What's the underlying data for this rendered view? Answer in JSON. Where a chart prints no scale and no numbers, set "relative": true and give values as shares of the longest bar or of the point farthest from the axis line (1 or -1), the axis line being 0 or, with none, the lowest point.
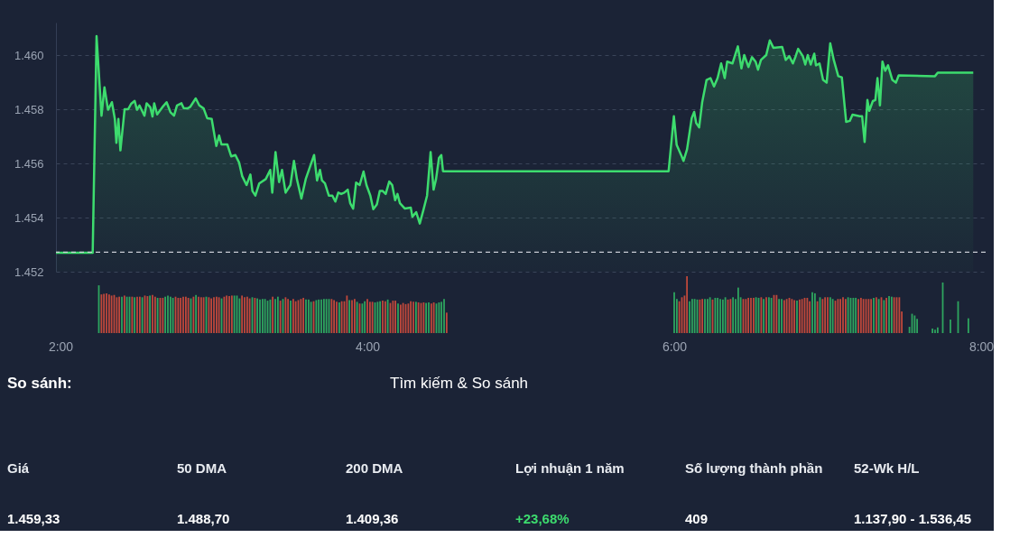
{
  "chart_data": [
    {
      "type": "area",
      "xlim": [
        2,
        8
      ],
      "ylim": [
        1452,
        1461.2
      ],
      "yticks": [
        {
          "value": 1452,
          "label": "1.452"
        },
        {
          "value": 1454,
          "label": "1.454"
        },
        {
          "value": 1456,
          "label": "1.456"
        },
        {
          "value": 1458,
          "label": "1.458"
        },
        {
          "value": 1460,
          "label": "1.460"
        }
      ],
      "grid": "y",
      "tick_labels": "y",
      "ref_lines": [
        {
          "axis": "y",
          "value": 1452.72,
          "color": "#c8ccd4",
          "line_style": "dashed"
        }
      ],
      "series": [
        {
          "type": "area",
          "color": "#3ddc6e",
          "x": [
            2.0,
            2.237,
            2.262,
            2.294,
            2.313,
            2.336,
            2.361,
            2.38,
            2.39,
            2.403,
            2.416,
            2.443,
            2.466,
            2.485,
            2.508,
            2.523,
            2.539,
            2.571,
            2.585,
            2.609,
            2.623,
            2.634,
            2.653,
            2.686,
            2.714,
            2.739,
            2.762,
            2.781,
            2.81,
            2.825,
            2.848,
            2.867,
            2.902,
            2.925,
            2.953,
            2.976,
            3.005,
            3.035,
            3.053,
            3.068,
            3.106,
            3.131,
            3.158,
            3.182,
            3.202,
            3.23,
            3.255,
            3.268,
            3.287,
            3.312,
            3.354,
            3.383,
            3.396,
            3.417,
            3.44,
            3.459,
            3.482,
            3.513,
            3.536,
            3.555,
            3.584,
            3.612,
            3.666,
            3.685,
            3.704,
            3.717,
            3.736,
            3.761,
            3.784,
            3.803,
            3.822,
            3.841,
            3.861,
            3.883,
            3.899,
            3.918,
            3.937,
            3.96,
            3.985,
            4.004,
            4.029,
            4.048,
            4.071,
            4.09,
            4.109,
            4.128,
            4.151,
            4.17,
            4.189,
            4.204,
            4.22,
            4.252,
            4.29,
            4.3,
            4.325,
            4.348,
            4.373,
            4.395,
            4.418,
            4.437,
            4.453,
            4.472,
            4.487,
            4.498,
            5.954,
            5.988,
            6.006,
            6.034,
            6.05,
            6.073,
            6.103,
            6.119,
            6.132,
            6.151,
            6.171,
            6.199,
            6.224,
            6.247,
            6.27,
            6.293,
            6.316,
            6.332,
            6.366,
            6.401,
            6.424,
            6.442,
            6.469,
            6.492,
            6.515,
            6.531,
            6.55,
            6.584,
            6.607,
            6.63,
            6.687,
            6.71,
            6.733,
            6.756,
            6.774,
            6.79,
            6.82,
            6.836,
            6.852,
            6.871,
            6.894,
            6.905,
            6.928,
            6.951,
            6.974,
            6.997,
            7.02,
            7.049,
            7.072,
            7.1,
            7.123,
            7.141,
            7.187,
            7.203,
            7.219,
            7.237,
            7.249,
            7.272,
            7.288,
            7.302,
            7.318,
            7.334,
            7.352,
            7.37,
            7.398,
            7.421,
            7.439,
            7.673,
            7.691,
            7.92
          ],
          "values": [
            1452.7,
            1452.7,
            1460.7,
            1457.76,
            1458.81,
            1457.98,
            1458.26,
            1457.64,
            1456.76,
            1457.64,
            1456.48,
            1458.0,
            1458.0,
            1458.2,
            1458.31,
            1457.98,
            1458.14,
            1457.76,
            1458.22,
            1458.07,
            1457.73,
            1458.22,
            1457.81,
            1458.07,
            1458.26,
            1457.89,
            1457.76,
            1458.14,
            1458.22,
            1458.03,
            1458.03,
            1458.09,
            1458.4,
            1458.14,
            1458.03,
            1457.67,
            1457.64,
            1456.64,
            1457.03,
            1456.7,
            1456.7,
            1456.26,
            1456.31,
            1456.03,
            1455.53,
            1455.2,
            1455.59,
            1454.98,
            1454.81,
            1455.26,
            1455.42,
            1455.76,
            1454.92,
            1456.42,
            1455.31,
            1455.76,
            1454.92,
            1455.2,
            1456.09,
            1455.42,
            1454.7,
            1455.42,
            1456.31,
            1455.37,
            1455.76,
            1455.37,
            1455.26,
            1454.81,
            1454.81,
            1454.59,
            1454.92,
            1454.87,
            1454.92,
            1455.03,
            1454.53,
            1454.33,
            1455.29,
            1455.2,
            1455.7,
            1455.2,
            1454.81,
            1454.31,
            1454.48,
            1454.98,
            1454.98,
            1454.87,
            1455.33,
            1455.2,
            1454.64,
            1454.87,
            1454.53,
            1454.33,
            1454.37,
            1454.03,
            1454.2,
            1453.78,
            1454.31,
            1454.81,
            1456.42,
            1455.03,
            1455.42,
            1456.2,
            1456.31,
            1455.71,
            1455.71,
            1457.74,
            1456.68,
            1456.32,
            1456.09,
            1456.52,
            1457.67,
            1457.9,
            1457.49,
            1457.33,
            1458.27,
            1459.08,
            1459.15,
            1458.84,
            1459.15,
            1459.69,
            1459.15,
            1459.76,
            1459.69,
            1460.32,
            1459.51,
            1460.0,
            1459.56,
            1459.92,
            1459.76,
            1459.46,
            1459.82,
            1460.0,
            1460.54,
            1460.27,
            1460.3,
            1459.82,
            1459.96,
            1459.69,
            1459.96,
            1460.23,
            1459.96,
            1459.65,
            1460.0,
            1459.65,
            1460.05,
            1459.62,
            1459.69,
            1459.08,
            1458.98,
            1460.43,
            1459.82,
            1459.22,
            1459.18,
            1457.53,
            1457.57,
            1457.8,
            1457.74,
            1457.74,
            1456.79,
            1458.34,
            1457.94,
            1458.3,
            1458.34,
            1459.15,
            1458.14,
            1459.76,
            1459.42,
            1459.62,
            1459.08,
            1458.98,
            1459.25,
            1459.22,
            1459.35,
            1459.35
          ]
        }
      ]
    },
    {
      "type": "bar",
      "relative": true,
      "xlim": [
        2,
        8
      ],
      "xticks": [
        {
          "value": 2,
          "label": "2:00"
        },
        {
          "value": 4,
          "label": "4:00"
        },
        {
          "value": 6,
          "label": "6:00"
        },
        {
          "value": 8,
          "label": "8:00"
        }
      ],
      "tick_labels": "x",
      "x": [
        2.25,
        2.267,
        2.283,
        2.3,
        2.317,
        2.333,
        2.35,
        2.367,
        2.383,
        2.4,
        2.417,
        2.433,
        2.45,
        2.467,
        2.483,
        2.5,
        2.517,
        2.533,
        2.55,
        2.567,
        2.583,
        2.6,
        2.617,
        2.633,
        2.65,
        2.667,
        2.683,
        2.7,
        2.717,
        2.733,
        2.75,
        2.767,
        2.783,
        2.8,
        2.817,
        2.833,
        2.85,
        2.867,
        2.883,
        2.9,
        2.917,
        2.933,
        2.95,
        2.967,
        2.983,
        3.0,
        3.017,
        3.033,
        3.05,
        3.067,
        3.083,
        3.1,
        3.117,
        3.133,
        3.15,
        3.167,
        3.183,
        3.2,
        3.217,
        3.233,
        3.25,
        3.267,
        3.283,
        3.3,
        3.317,
        3.333,
        3.35,
        3.367,
        3.383,
        3.4,
        3.417,
        3.433,
        3.45,
        3.467,
        3.483,
        3.5,
        3.517,
        3.533,
        3.55,
        3.567,
        3.583,
        3.6,
        3.617,
        3.633,
        3.65,
        3.667,
        3.683,
        3.7,
        3.717,
        3.733,
        3.75,
        3.767,
        3.783,
        3.8,
        3.817,
        3.833,
        3.85,
        3.867,
        3.883,
        3.9,
        3.917,
        3.933,
        3.95,
        3.967,
        3.983,
        4.0,
        4.017,
        4.033,
        4.05,
        4.067,
        4.083,
        4.1,
        4.117,
        4.133,
        4.15,
        4.167,
        4.183,
        4.2,
        4.217,
        4.233,
        4.25,
        4.267,
        4.283,
        4.3,
        4.317,
        4.333,
        4.35,
        4.367,
        4.383,
        4.4,
        4.417,
        4.433,
        4.45,
        4.467,
        4.483,
        4.5,
        4.517,
        6.0,
        6.017,
        6.033,
        6.05,
        6.067,
        6.083,
        6.1,
        6.117,
        6.133,
        6.15,
        6.167,
        6.183,
        6.2,
        6.217,
        6.233,
        6.25,
        6.267,
        6.283,
        6.3,
        6.317,
        6.333,
        6.35,
        6.367,
        6.383,
        6.4,
        6.417,
        6.433,
        6.45,
        6.467,
        6.483,
        6.5,
        6.517,
        6.533,
        6.55,
        6.567,
        6.583,
        6.6,
        6.617,
        6.633,
        6.65,
        6.667,
        6.683,
        6.7,
        6.717,
        6.733,
        6.75,
        6.767,
        6.783,
        6.8,
        6.817,
        6.833,
        6.85,
        6.867,
        6.883,
        6.9,
        6.917,
        6.933,
        6.95,
        6.967,
        6.983,
        7.0,
        7.017,
        7.033,
        7.05,
        7.067,
        7.083,
        7.1,
        7.117,
        7.133,
        7.15,
        7.167,
        7.183,
        7.2,
        7.217,
        7.233,
        7.25,
        7.267,
        7.283,
        7.3,
        7.317,
        7.333,
        7.35,
        7.367,
        7.383,
        7.4,
        7.417,
        7.433,
        7.45,
        7.467,
        7.483,
        7.533,
        7.55,
        7.567,
        7.583,
        7.683,
        7.7,
        7.717,
        7.75,
        7.8,
        7.85,
        7.917
      ],
      "values": [
        0.84,
        0.68,
        0.69,
        0.7,
        0.68,
        0.66,
        0.67,
        0.63,
        0.64,
        0.64,
        0.66,
        0.64,
        0.64,
        0.64,
        0.63,
        0.64,
        0.64,
        0.63,
        0.66,
        0.65,
        0.66,
        0.67,
        0.64,
        0.62,
        0.62,
        0.62,
        0.64,
        0.66,
        0.64,
        0.62,
        0.64,
        0.62,
        0.62,
        0.64,
        0.64,
        0.62,
        0.61,
        0.64,
        0.67,
        0.64,
        0.63,
        0.63,
        0.64,
        0.63,
        0.61,
        0.63,
        0.64,
        0.63,
        0.61,
        0.64,
        0.66,
        0.65,
        0.66,
        0.66,
        0.66,
        0.61,
        0.66,
        0.63,
        0.64,
        0.61,
        0.63,
        0.62,
        0.61,
        0.59,
        0.6,
        0.6,
        0.57,
        0.59,
        0.64,
        0.6,
        0.64,
        0.57,
        0.6,
        0.63,
        0.6,
        0.57,
        0.6,
        0.56,
        0.58,
        0.6,
        0.62,
        0.59,
        0.59,
        0.55,
        0.56,
        0.58,
        0.59,
        0.59,
        0.6,
        0.6,
        0.6,
        0.6,
        0.58,
        0.55,
        0.54,
        0.56,
        0.56,
        0.66,
        0.58,
        0.58,
        0.6,
        0.55,
        0.52,
        0.52,
        0.56,
        0.6,
        0.55,
        0.55,
        0.54,
        0.55,
        0.56,
        0.57,
        0.56,
        0.59,
        0.53,
        0.57,
        0.57,
        0.52,
        0.5,
        0.53,
        0.51,
        0.52,
        0.56,
        0.55,
        0.55,
        0.54,
        0.53,
        0.54,
        0.53,
        0.54,
        0.52,
        0.54,
        0.52,
        0.54,
        0.55,
        0.6,
        0.36,
        0.72,
        0.6,
        0.56,
        0.63,
        0.66,
        1.0,
        0.56,
        0.6,
        0.6,
        0.59,
        0.59,
        0.6,
        0.6,
        0.6,
        0.63,
        0.59,
        0.62,
        0.62,
        0.6,
        0.59,
        0.63,
        0.59,
        0.6,
        0.63,
        0.6,
        0.8,
        0.63,
        0.6,
        0.6,
        0.62,
        0.62,
        0.62,
        0.63,
        0.62,
        0.63,
        0.6,
        0.63,
        0.63,
        0.62,
        0.67,
        0.67,
        0.6,
        0.6,
        0.58,
        0.6,
        0.62,
        0.6,
        0.58,
        0.57,
        0.59,
        0.6,
        0.62,
        0.62,
        0.56,
        0.72,
        0.7,
        0.56,
        0.63,
        0.6,
        0.63,
        0.63,
        0.63,
        0.6,
        0.57,
        0.6,
        0.6,
        0.63,
        0.6,
        0.63,
        0.62,
        0.62,
        0.62,
        0.6,
        0.62,
        0.6,
        0.6,
        0.6,
        0.6,
        0.62,
        0.63,
        0.6,
        0.63,
        0.58,
        0.62,
        0.65,
        0.64,
        0.63,
        0.63,
        0.63,
        0.38,
        0.11,
        0.34,
        0.31,
        0.25,
        0.08,
        0.06,
        0.1,
        0.89,
        0.24,
        0.56,
        0.26
      ],
      "colors": [
        "#2ea55f",
        "#c0483b",
        "#c0483b",
        "#c0483b",
        "#c0483b",
        "#c0483b",
        "#c0483b",
        "#c0483b",
        "#c0483b",
        "#2ea55f",
        "#c0483b",
        "#2ea55f",
        "#2ea55f",
        "#c0483b",
        "#2ea55f",
        "#c0483b",
        "#c0483b",
        "#2ea55f",
        "#c0483b",
        "#c0483b",
        "#2ea55f",
        "#c0483b",
        "#c0483b",
        "#2ea55f",
        "#c0483b",
        "#c0483b",
        "#2ea55f",
        "#2ea55f",
        "#2ea55f",
        "#2ea55f",
        "#c0483b",
        "#c0483b",
        "#c0483b",
        "#c0483b",
        "#c0483b",
        "#c0483b",
        "#2ea55f",
        "#c0483b",
        "#2ea55f",
        "#c0483b",
        "#c0483b",
        "#c0483b",
        "#2ea55f",
        "#c0483b",
        "#c0483b",
        "#c0483b",
        "#c0483b",
        "#c0483b",
        "#2ea55f",
        "#c0483b",
        "#c0483b",
        "#c0483b",
        "#c0483b",
        "#2ea55f",
        "#2ea55f",
        "#2ea55f",
        "#c0483b",
        "#c0483b",
        "#c0483b",
        "#c0483b",
        "#2ea55f",
        "#c0483b",
        "#2ea55f",
        "#2ea55f",
        "#2ea55f",
        "#2ea55f",
        "#2ea55f",
        "#2ea55f",
        "#c0483b",
        "#2ea55f",
        "#2ea55f",
        "#c0483b",
        "#2ea55f",
        "#c0483b",
        "#c0483b",
        "#2ea55f",
        "#c0483b",
        "#c0483b",
        "#c0483b",
        "#c0483b",
        "#c0483b",
        "#2ea55f",
        "#2ea55f",
        "#2ea55f",
        "#c0483b",
        "#2ea55f",
        "#2ea55f",
        "#2ea55f",
        "#2ea55f",
        "#2ea55f",
        "#2ea55f",
        "#c0483b",
        "#c0483b",
        "#c0483b",
        "#2ea55f",
        "#c0483b",
        "#c0483b",
        "#c0483b",
        "#2ea55f",
        "#c0483b",
        "#c0483b",
        "#2ea55f",
        "#c0483b",
        "#2ea55f",
        "#2ea55f",
        "#c0483b",
        "#c0483b",
        "#c0483b",
        "#2ea55f",
        "#2ea55f",
        "#2ea55f",
        "#c0483b",
        "#c0483b",
        "#2ea55f",
        "#c0483b",
        "#c0483b",
        "#c0483b",
        "#2ea55f",
        "#c0483b",
        "#c0483b",
        "#c0483b",
        "#c0483b",
        "#c0483b",
        "#c0483b",
        "#2ea55f",
        "#c0483b",
        "#c0483b",
        "#c0483b",
        "#2ea55f",
        "#2ea55f",
        "#c0483b",
        "#c0483b",
        "#2ea55f",
        "#2ea55f",
        "#2ea55f",
        "#2ea55f",
        "#c0483b",
        "#2ea55f",
        "#2ea55f",
        "#c0483b",
        "#c0483b",
        "#c0483b",
        "#c0483b",
        "#2ea55f",
        "#2ea55f",
        "#2ea55f",
        "#2ea55f",
        "#c0483b",
        "#c0483b",
        "#2ea55f",
        "#2ea55f",
        "#2ea55f",
        "#c0483b",
        "#2ea55f",
        "#2ea55f",
        "#2ea55f",
        "#2ea55f",
        "#2ea55f",
        "#c0483b",
        "#c0483b",
        "#2ea55f",
        "#2ea55f",
        "#2ea55f",
        "#2ea55f",
        "#c0483b",
        "#c0483b",
        "#c0483b",
        "#c0483b",
        "#c0483b",
        "#2ea55f",
        "#2ea55f",
        "#c0483b",
        "#2ea55f",
        "#c0483b",
        "#2ea55f",
        "#2ea55f",
        "#c0483b",
        "#c0483b",
        "#2ea55f",
        "#2ea55f",
        "#c0483b",
        "#c0483b",
        "#c0483b",
        "#c0483b",
        "#c0483b",
        "#2ea55f",
        "#c0483b",
        "#c0483b",
        "#c0483b",
        "#c0483b",
        "#c0483b",
        "#2ea55f",
        "#2ea55f",
        "#c0483b",
        "#2ea55f",
        "#c0483b",
        "#c0483b",
        "#c0483b",
        "#2ea55f",
        "#2ea55f",
        "#c0483b",
        "#c0483b",
        "#c0483b",
        "#c0483b",
        "#c0483b",
        "#2ea55f",
        "#2ea55f",
        "#2ea55f",
        "#2ea55f",
        "#c0483b",
        "#c0483b",
        "#c0483b",
        "#c0483b",
        "#c0483b",
        "#c0483b",
        "#2ea55f",
        "#c0483b",
        "#2ea55f",
        "#c0483b",
        "#2ea55f",
        "#c0483b",
        "#2ea55f",
        "#2ea55f",
        "#c0483b",
        "#c0483b",
        "#c0483b",
        "#c0483b",
        "#2ea55f",
        "#2ea55f",
        "#2ea55f",
        "#2ea55f",
        "#2ea55f",
        "#2ea55f",
        "#2ea55f",
        "#2ea55f",
        "#2ea55f",
        "#2ea55f",
        "#2ea55f"
      ]
    },
    {
      "type": "other",
      "annotations": [
        "So sánh:",
        "Tìm kiếm & So sánh",
        "Giá",
        "1.459,33",
        "50 DMA",
        "1.488,70",
        "200 DMA",
        "1.409,36",
        "Lợi nhuận 1 năm",
        "+23,68%",
        "Số lượng thành phần",
        "409",
        "52-Wk H/L",
        "1.137,90 - 1.536,45"
      ]
    }
  ]
}
